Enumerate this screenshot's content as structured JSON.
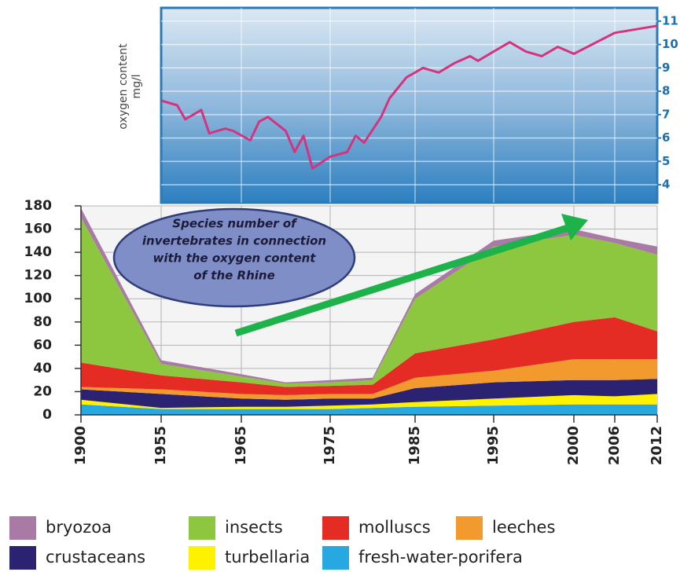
{
  "chart_data": [
    {
      "type": "line",
      "ylabel": [
        "oxygen content",
        "mg/l"
      ],
      "xlim": [
        1955,
        2012
      ],
      "ylim": [
        3.5,
        11.5
      ],
      "yticks": [
        4,
        5,
        6,
        7,
        8,
        9,
        10,
        11
      ],
      "series": [
        {
          "name": null,
          "color": "#d6337f",
          "x": [
            1955,
            1956,
            1957,
            1958,
            1959,
            1960,
            1961,
            1963,
            1964,
            1966,
            1967,
            1968,
            1969,
            1970,
            1971,
            1972,
            1973,
            1975,
            1977,
            1978,
            1979,
            1981,
            1982,
            1984,
            1985,
            1986,
            1988,
            1990,
            1992,
            1993,
            1995,
            1996,
            1997,
            1998,
            1999,
            2000,
            2006,
            2012
          ],
          "values": [
            7.6,
            7.5,
            7.4,
            6.8,
            7.0,
            7.2,
            6.2,
            6.4,
            6.3,
            5.9,
            6.7,
            6.9,
            6.6,
            6.3,
            5.4,
            6.1,
            4.7,
            5.2,
            5.4,
            6.1,
            5.8,
            6.9,
            7.7,
            8.6,
            8.8,
            9.0,
            8.8,
            9.2,
            9.5,
            9.3,
            9.7,
            10.1,
            9.7,
            9.5,
            9.9,
            9.6,
            10.5,
            10.8
          ]
        }
      ]
    },
    {
      "type": "area",
      "annotation": [
        "Species number of",
        "invertebrates in connection",
        "with the oxygen content",
        "of the Rhine"
      ],
      "x": [
        1900,
        1955,
        1965,
        1970,
        1975,
        1980,
        1985,
        1995,
        2000,
        2006,
        2012
      ],
      "xlim": [
        1900,
        2012
      ],
      "xticks": [
        1900,
        1955,
        1965,
        1975,
        1985,
        1995,
        2000,
        2006,
        2012
      ],
      "ylim": [
        0,
        180
      ],
      "yticks": [
        0,
        20,
        40,
        60,
        80,
        100,
        120,
        140,
        160,
        180
      ],
      "grid": true,
      "series": [
        {
          "name": "bryozoa",
          "color": "#a97aa6",
          "values": [
            8,
            3,
            2,
            1,
            2,
            2,
            4,
            5,
            5,
            4,
            7
          ]
        },
        {
          "name": "insects",
          "color": "#8dc63f",
          "values": [
            125,
            10,
            5,
            3,
            3,
            4,
            47,
            80,
            75,
            64,
            66
          ]
        },
        {
          "name": "molluscs",
          "color": "#e42b24",
          "values": [
            21,
            12,
            10,
            7,
            7,
            8,
            21,
            27,
            32,
            36,
            24
          ]
        },
        {
          "name": "leeches",
          "color": "#f29a2e",
          "values": [
            2,
            4,
            4,
            4,
            4,
            4,
            9,
            10,
            18,
            18,
            17
          ]
        },
        {
          "name": "crustaceans",
          "color": "#2b2272",
          "values": [
            9,
            12,
            7,
            6,
            6,
            5,
            12,
            14,
            13,
            14,
            13
          ]
        },
        {
          "name": "turbellaria",
          "color": "#fff200",
          "values": [
            4,
            1,
            2,
            2,
            3,
            3,
            4,
            6,
            8,
            7,
            9
          ]
        },
        {
          "name": "fresh-water-porifera",
          "color": "#27a8e0",
          "values": [
            9,
            5,
            5,
            5,
            5,
            6,
            7,
            8,
            9,
            9,
            9
          ]
        }
      ]
    }
  ]
}
